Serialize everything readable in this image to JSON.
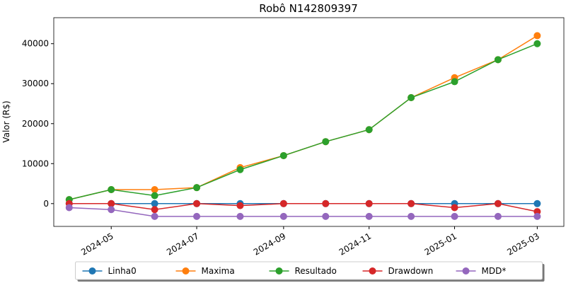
{
  "chart_data": {
    "type": "line",
    "title": "Robô N142809397",
    "y_label": "Valor (R$)",
    "x": [
      "2024-04",
      "2024-05",
      "2024-06",
      "2024-07",
      "2024-08",
      "2024-09",
      "2024-10",
      "2024-11",
      "2024-12",
      "2025-01",
      "2025-02",
      "2025-03"
    ],
    "series": [
      {
        "name": "Linha0",
        "color": "#1f77b4",
        "values": [
          0,
          0,
          0,
          0,
          0,
          0,
          0,
          0,
          0,
          0,
          0,
          0
        ]
      },
      {
        "name": "Maxima",
        "color": "#ff7f0e",
        "values": [
          1000,
          3500,
          3500,
          4000,
          9000,
          12000,
          15500,
          18500,
          26500,
          31500,
          36000,
          42000
        ]
      },
      {
        "name": "Resultado",
        "color": "#2ca02c",
        "values": [
          1000,
          3500,
          2000,
          4000,
          8500,
          12000,
          15500,
          18500,
          26500,
          30500,
          36000,
          40000
        ]
      },
      {
        "name": "Drawdown",
        "color": "#d62728",
        "values": [
          0,
          0,
          -1500,
          0,
          -500,
          0,
          0,
          0,
          0,
          -1000,
          0,
          -2000
        ]
      },
      {
        "name": "MDD*",
        "color": "#9467bd",
        "values": [
          -1000,
          -1500,
          -3200,
          -3200,
          -3200,
          -3200,
          -3200,
          -3200,
          -3200,
          -3200,
          -3200,
          -3200
        ]
      }
    ],
    "xlim": [
      "2024-03-21",
      "2025-03-20"
    ],
    "xticks": [
      "2024-05",
      "2024-07",
      "2024-09",
      "2024-11",
      "2025-01",
      "2025-03"
    ],
    "ylim": [
      -5700,
      46500
    ],
    "yticks": [
      0,
      10000,
      20000,
      30000,
      40000
    ],
    "grid": false,
    "legend": "lower center"
  }
}
